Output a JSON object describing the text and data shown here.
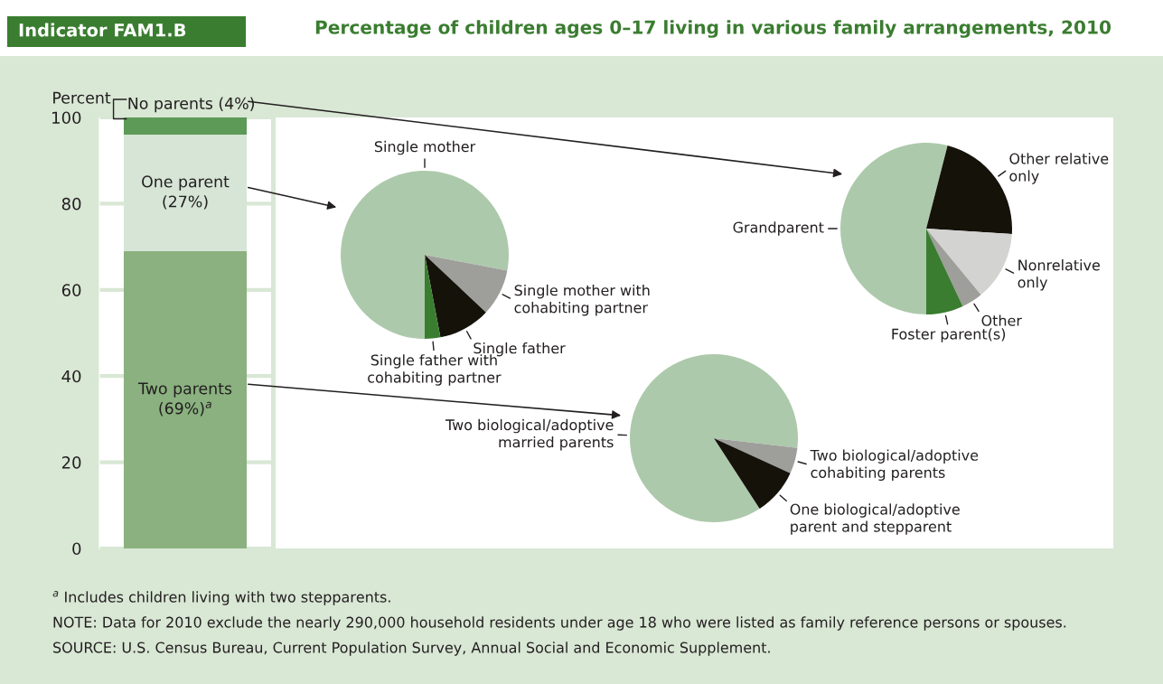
{
  "chart_data": [
    {
      "type": "bar",
      "stacked": true,
      "subtitle": "Indicator FAM1.B",
      "ylabel": "Percent",
      "categories": [
        null
      ],
      "ylim": [
        0,
        100
      ],
      "yticks": [
        0,
        20,
        40,
        60,
        80,
        100
      ],
      "grid": "y",
      "series": [
        {
          "name": "Two parents\n(69%)$^{a}$",
          "color": "#8ab17f",
          "values": [
            69
          ]
        },
        {
          "name": "One parent\n(27%)",
          "color": "#d6e5d6",
          "values": [
            27
          ]
        },
        {
          "name": "No parents (4%)",
          "color": "#5d9a57",
          "values": [
            4
          ]
        }
      ],
      "annotations": [
        "$^{a}$ Includes children living with two stepparents.",
        "NOTE: Data for 2010 exclude the nearly 290,000 household residents under age 18 who were listed as family reference persons or spouses.",
        "SOURCE: U.S. Census Bureau, Current Population Survey, Annual Social and Economic Supplement."
      ]
    },
    {
      "type": "pie",
      "title": "Percentage of children ages 0–17 living in various family arrangements, 2010",
      "categories": [
        "Single mother",
        "Single mother with\ncohabiting partner",
        "Single father",
        "Single father with\ncohabiting partner"
      ],
      "values": [
        78,
        9,
        10,
        3
      ],
      "colors": [
        "#adc9ab",
        "#9e9e9b",
        "#15120a",
        "#3a7d30"
      ]
    },
    {
      "type": "pie",
      "categories": [
        "Grandparent",
        "Other relative\nonly",
        "Nonrelative\nonly",
        "Other",
        "Foster parent(s)"
      ],
      "values": [
        54,
        22,
        13,
        4,
        7
      ],
      "colors": [
        "#adc9ab",
        "#15120a",
        "#d3d3d1",
        "#9e9e9b",
        "#3a7d30"
      ]
    },
    {
      "type": "pie",
      "categories": [
        "Two biological/adoptive\nmarried parents",
        "Two biological/adoptive\ncohabiting parents",
        "One biological/adoptive\nparent and stepparent"
      ],
      "values": [
        86,
        5,
        9
      ],
      "colors": [
        "#adc9ab",
        "#9e9e9b",
        "#15120a"
      ]
    }
  ]
}
